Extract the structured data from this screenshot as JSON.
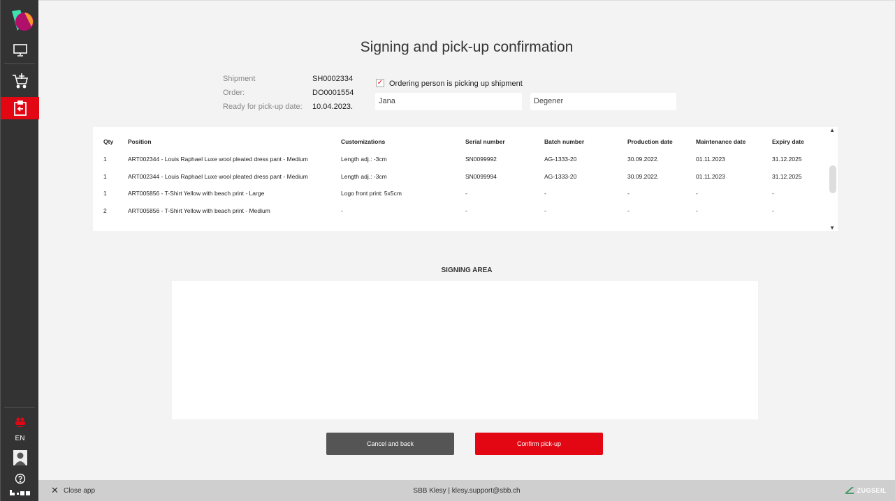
{
  "sidebar": {
    "language": "EN",
    "items": [
      {
        "icon": "monitor-icon"
      },
      {
        "icon": "cart-add-icon"
      },
      {
        "icon": "pickup-return-icon",
        "active": true
      }
    ]
  },
  "page": {
    "title": "Signing and pick-up confirmation"
  },
  "info": {
    "shipment_label": "Shipment",
    "shipment": "SH0002334",
    "order_label": "Order:",
    "order": "DO0001554",
    "ready_label": "Ready for pick-up date:",
    "ready": "10.04.2023."
  },
  "pickup": {
    "checked": true,
    "checkbox_label": "Ordering person is picking up shipment",
    "first_name": "Jana",
    "last_name": "Degener"
  },
  "table": {
    "headers": [
      "Qty",
      "Position",
      "Customizations",
      "Serial number",
      "Batch number",
      "Production date",
      "Maintenance date",
      "Expiry date"
    ],
    "rows": [
      [
        "1",
        "ART002344 - Louis Raphael Luxe wool pleated dress pant - Medium",
        "Length adj.: -3cm",
        "SN0099992",
        "AG-1333-20",
        "30.09.2022.",
        "01.11.2023",
        "31.12.2025"
      ],
      [
        "1",
        "ART002344 - Louis Raphael Luxe wool pleated dress pant - Medium",
        "Length adj.: -3cm",
        "SN0099994",
        "AG-1333-20",
        "30.09.2022.",
        "01.11.2023",
        "31.12.2025"
      ],
      [
        "1",
        "ART005856 - T-Shirt Yellow with beach print - Large",
        "Logo front print: 5x5cm",
        "-",
        "-",
        "-",
        "-",
        "-"
      ],
      [
        "2",
        "ART005856 - T-Shirt Yellow with beach print - Medium",
        "-",
        "-",
        "-",
        "-",
        "-",
        "-"
      ]
    ]
  },
  "signing": {
    "label": "SIGNING AREA"
  },
  "buttons": {
    "cancel": "Cancel and back",
    "confirm": "Confirm pick-up"
  },
  "footer": {
    "close": "Close app",
    "center": "SBB Klesy | klesy.support@sbb.ch",
    "brand": "ZUGSEIL"
  },
  "colors": {
    "accent": "#e30613",
    "sidebar": "#333333",
    "cancel": "#555555"
  }
}
